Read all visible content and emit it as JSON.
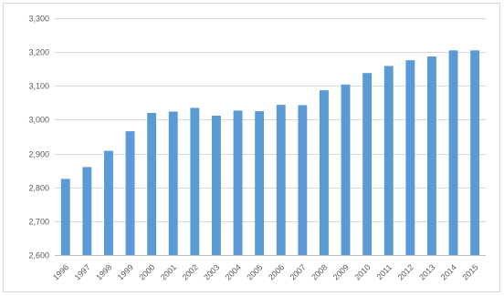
{
  "chart_data": {
    "type": "bar",
    "title": "",
    "xlabel": "",
    "ylabel": "",
    "categories": [
      "1996",
      "1997",
      "1998",
      "1999",
      "2000",
      "2001",
      "2002",
      "2003",
      "2004",
      "2005",
      "2006",
      "2007",
      "2008",
      "2009",
      "2010",
      "2011",
      "2012",
      "2013",
      "2014",
      "2015"
    ],
    "values": [
      2825,
      2860,
      2908,
      2966,
      3020,
      3024,
      3035,
      3012,
      3027,
      3025,
      3044,
      3043,
      3087,
      3104,
      3138,
      3159,
      3176,
      3187,
      3205,
      3205
    ],
    "ylim": [
      2600,
      3300
    ],
    "yticks": [
      2600,
      2700,
      2800,
      2900,
      3000,
      3100,
      3200,
      3300
    ],
    "ytick_labels": [
      "2,600",
      "2,700",
      "2,800",
      "2,900",
      "3,000",
      "3,100",
      "3,200",
      "3,300"
    ],
    "grid": true,
    "legend": "none",
    "bar_color": "#5b9bd5"
  }
}
